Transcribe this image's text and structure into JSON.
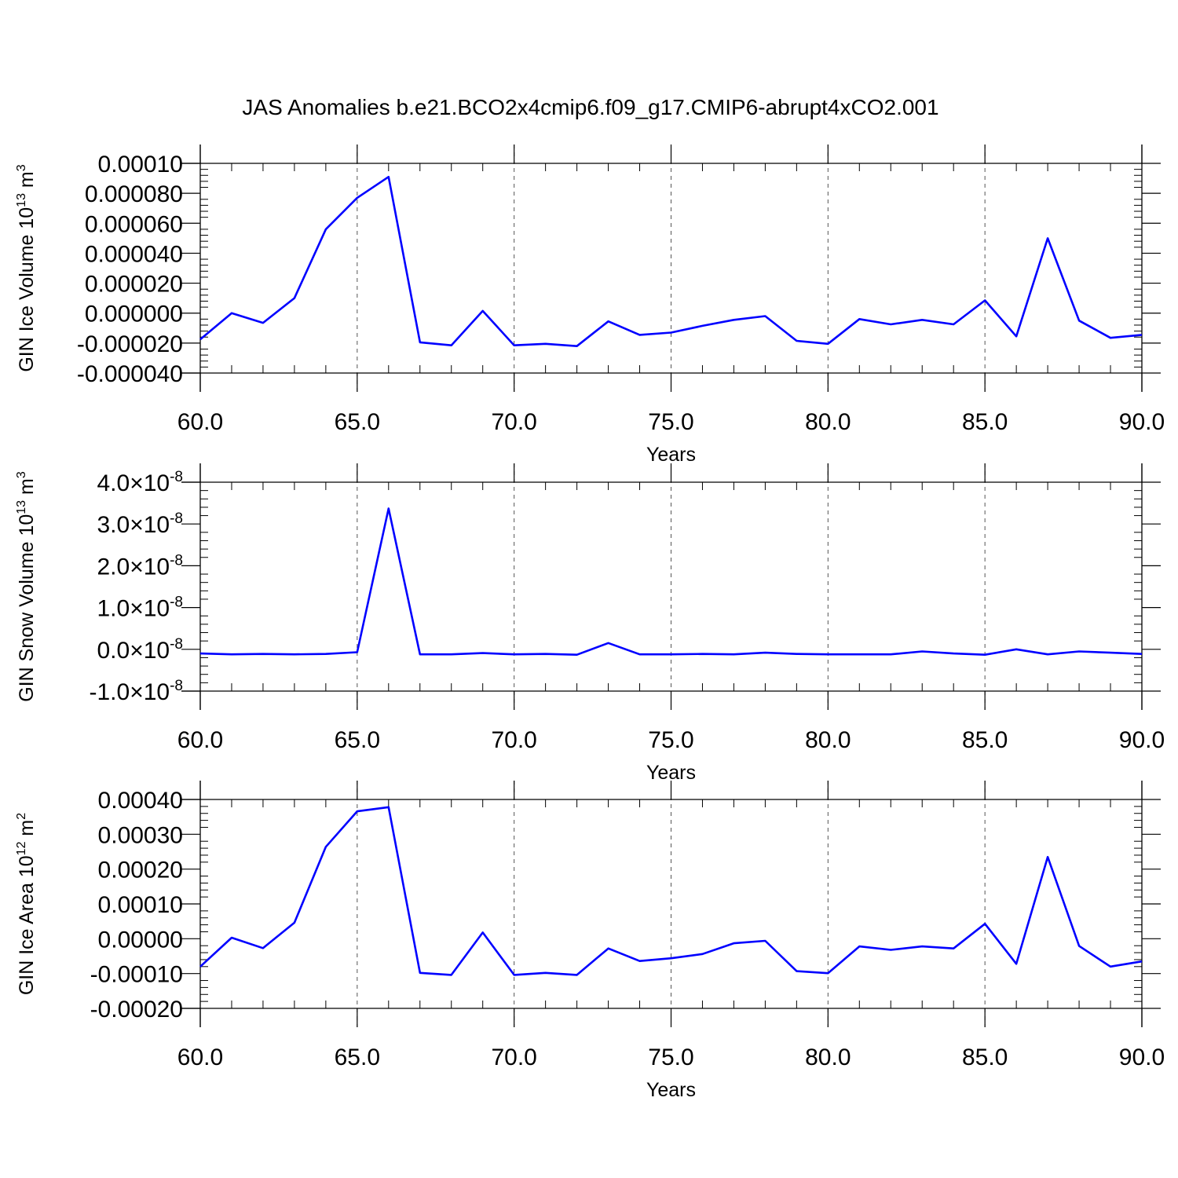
{
  "title": "JAS Anomalies b.e21.BCO2x4cmip6.f09_g17.CMIP6-abrupt4xCO2.001",
  "chart_data": [
    {
      "type": "line",
      "xlabel": "Years",
      "ylabel": {
        "text": "GIN Ice Volume 10",
        "sup1": "13",
        "mid": " m",
        "sup2": "3"
      },
      "xlim": [
        60,
        90
      ],
      "ylim": [
        -4e-05,
        0.0001
      ],
      "x_ticks": [
        "60.0",
        "65.0",
        "70.0",
        "75.0",
        "80.0",
        "85.0",
        "90.0"
      ],
      "y_ticks": [
        {
          "value": 0.0001,
          "label": "0.00010"
        },
        {
          "value": 8e-05,
          "label": "0.000080"
        },
        {
          "value": 6e-05,
          "label": "0.000060"
        },
        {
          "value": 4e-05,
          "label": "0.000040"
        },
        {
          "value": 2e-05,
          "label": "0.000020"
        },
        {
          "value": 0.0,
          "label": "0.000000"
        },
        {
          "value": -2e-05,
          "label": "-0.000020"
        },
        {
          "value": -4e-05,
          "label": "-0.000040"
        }
      ],
      "grid": "dashed vertical at major x ticks",
      "color": "#0000ff",
      "x": [
        60,
        61,
        62,
        63,
        64,
        65,
        66,
        67,
        68,
        69,
        70,
        71,
        72,
        73,
        74,
        75,
        76,
        77,
        78,
        79,
        80,
        81,
        82,
        83,
        84,
        85,
        86,
        87,
        88,
        89,
        90
      ],
      "values": [
        -1.75e-05,
        0.0,
        -6.5e-06,
        1e-05,
        5.6e-05,
        7.7e-05,
        9.1e-05,
        -1.95e-05,
        -2.15e-05,
        1.5e-06,
        -2.15e-05,
        -2.05e-05,
        -2.2e-05,
        -5.5e-06,
        -1.45e-05,
        -1.3e-05,
        -8.5e-06,
        -4.5e-06,
        -2e-06,
        -1.85e-05,
        -2.05e-05,
        -4e-06,
        -7.5e-06,
        -4.5e-06,
        -7.5e-06,
        8.5e-06,
        -1.55e-05,
        5e-05,
        -5e-06,
        -1.65e-05,
        -1.45e-05
      ]
    },
    {
      "type": "line",
      "xlabel": "Years",
      "ylabel": {
        "text": "GIN Snow Volume 10",
        "sup1": "13",
        "mid": " m",
        "sup2": "3"
      },
      "xlim": [
        60,
        90
      ],
      "ylim": [
        -1e-08,
        4e-08
      ],
      "x_ticks": [
        "60.0",
        "65.0",
        "70.0",
        "75.0",
        "80.0",
        "85.0",
        "90.0"
      ],
      "y_ticks": [
        {
          "value": 4e-08,
          "label": "4.0",
          "times": "×10",
          "exp": "-8"
        },
        {
          "value": 3e-08,
          "label": "3.0",
          "times": "×10",
          "exp": "-8"
        },
        {
          "value": 2e-08,
          "label": "2.0",
          "times": "×10",
          "exp": "-8"
        },
        {
          "value": 1e-08,
          "label": "1.0",
          "times": "×10",
          "exp": "-8"
        },
        {
          "value": 0.0,
          "label": "0.0",
          "times": "×10",
          "exp": "-8"
        },
        {
          "value": -1e-08,
          "label": "-1.0",
          "times": "×10",
          "exp": "-8"
        }
      ],
      "grid": "dashed vertical at major x ticks",
      "color": "#0000ff",
      "x": [
        60,
        61,
        62,
        63,
        64,
        65,
        66,
        67,
        68,
        69,
        70,
        71,
        72,
        73,
        74,
        75,
        76,
        77,
        78,
        79,
        80,
        81,
        82,
        83,
        84,
        85,
        86,
        87,
        88,
        89,
        90
      ],
      "values": [
        -1e-09,
        -1.2e-09,
        -1.1e-09,
        -1.2e-09,
        -1.1e-09,
        -7e-10,
        3.37e-08,
        -1.2e-09,
        -1.2e-09,
        -9e-10,
        -1.2e-09,
        -1.1e-09,
        -1.3e-09,
        1.5e-09,
        -1.2e-09,
        -1.2e-09,
        -1.1e-09,
        -1.2e-09,
        -8e-10,
        -1.1e-09,
        -1.2e-09,
        -1.2e-09,
        -1.2e-09,
        -5e-10,
        -1e-09,
        -1.3e-09,
        0.0,
        -1.2e-09,
        -5e-10,
        -8e-10,
        -1.1e-09
      ]
    },
    {
      "type": "line",
      "xlabel": "Years",
      "ylabel": {
        "text": "GIN Ice Area 10",
        "sup1": "12",
        "mid": " m",
        "sup2": "2"
      },
      "xlim": [
        60,
        90
      ],
      "ylim": [
        -0.0002,
        0.0004
      ],
      "x_ticks": [
        "60.0",
        "65.0",
        "70.0",
        "75.0",
        "80.0",
        "85.0",
        "90.0"
      ],
      "y_ticks": [
        {
          "value": 0.0004,
          "label": "0.00040"
        },
        {
          "value": 0.0003,
          "label": "0.00030"
        },
        {
          "value": 0.0002,
          "label": "0.00020"
        },
        {
          "value": 0.0001,
          "label": "0.00010"
        },
        {
          "value": 0.0,
          "label": "0.00000"
        },
        {
          "value": -0.0001,
          "label": "-0.00010"
        },
        {
          "value": -0.0002,
          "label": "-0.00020"
        }
      ],
      "grid": "dashed vertical at major x ticks",
      "color": "#0000ff",
      "x": [
        60,
        61,
        62,
        63,
        64,
        65,
        66,
        67,
        68,
        69,
        70,
        71,
        72,
        73,
        74,
        75,
        76,
        77,
        78,
        79,
        80,
        81,
        82,
        83,
        84,
        85,
        86,
        87,
        88,
        89,
        90
      ],
      "values": [
        -8e-05,
        3e-06,
        -2.7e-05,
        4.6e-05,
        0.000264,
        0.000366,
        0.000378,
        -9.8e-05,
        -0.000104,
        1.8e-05,
        -0.000104,
        -9.8e-05,
        -0.000104,
        -2.8e-05,
        -6.4e-05,
        -5.6e-05,
        -4.4e-05,
        -1.3e-05,
        -6e-06,
        -9.3e-05,
        -9.9e-05,
        -2.2e-05,
        -3.2e-05,
        -2.2e-05,
        -2.8e-05,
        4.3e-05,
        -7.2e-05,
        0.000235,
        -2.1e-05,
        -8e-05,
        -6.5e-05
      ]
    }
  ]
}
